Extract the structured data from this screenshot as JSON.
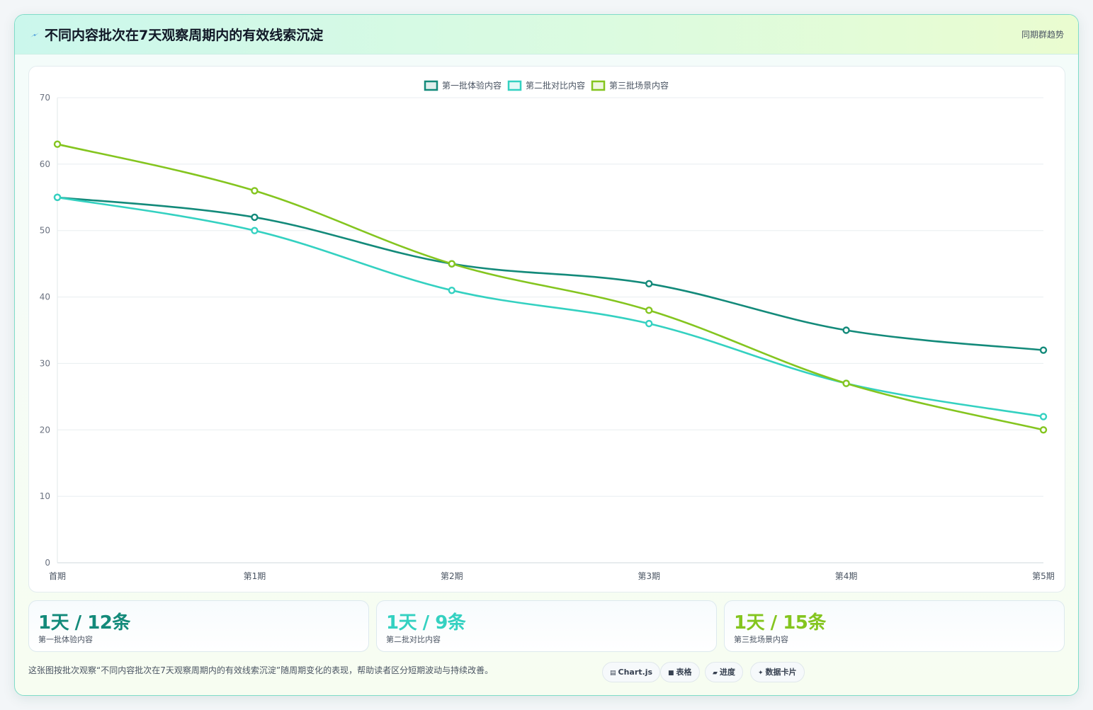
{
  "header": {
    "icon": "lightning-icon",
    "title": "不同内容批次在7天观察周期内的有效线索沉淀",
    "tag": "同期群趋势"
  },
  "colors": {
    "series1": "#138a7a",
    "series2": "#34d1c1",
    "series3": "#84c51f"
  },
  "chart_data": {
    "type": "line",
    "x": [
      "首期",
      "第1期",
      "第2期",
      "第3期",
      "第4期",
      "第5期"
    ],
    "ylim": [
      0,
      70
    ],
    "yticks": [
      0,
      10,
      20,
      30,
      40,
      50,
      60,
      70
    ],
    "grid": true,
    "legend_position": "top-center",
    "series": [
      {
        "name": "第一批体验内容",
        "values": [
          55,
          52,
          45,
          42,
          35,
          32
        ]
      },
      {
        "name": "第二批对比内容",
        "values": [
          55,
          50,
          41,
          36,
          27,
          22
        ]
      },
      {
        "name": "第三批场景内容",
        "values": [
          63,
          56,
          45,
          38,
          27,
          20
        ]
      }
    ]
  },
  "stats": [
    {
      "value": "1天 / 12条",
      "label": "第一批体验内容"
    },
    {
      "value": "1天 / 9条",
      "label": "第二批对比内容"
    },
    {
      "value": "1天 / 15条",
      "label": "第三批场景内容"
    }
  ],
  "footer": {
    "note": "这张图按批次观察“不同内容批次在7天观察周期内的有效线索沉淀”随周期变化的表现，帮助读者区分短期波动与持续改善。",
    "chips": [
      {
        "icon": "chart-icon",
        "label": "Chart.js"
      },
      {
        "icon": "table-icon",
        "label": "表格"
      },
      {
        "icon": "progress-icon",
        "label": "进度"
      },
      {
        "icon": "sparkle-icon",
        "label": "数据卡片"
      }
    ]
  }
}
